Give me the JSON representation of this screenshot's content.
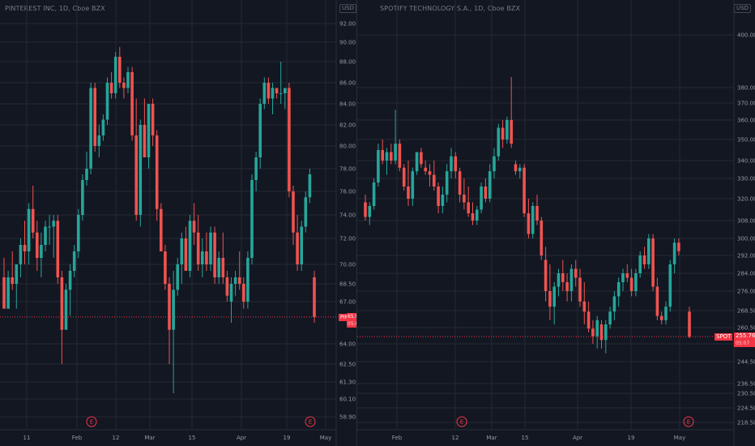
{
  "left": {
    "title": "PINTEREST INC, 1D, Cboe BZX",
    "currency": "USD",
    "symbol": "PINS",
    "price": "65.91",
    "countdown": "05:07",
    "earnings_label": "E",
    "colors": {
      "up": "#26a69a",
      "down": "#ef5350",
      "price_line": "#f23645"
    }
  },
  "right": {
    "title": "SPOTIFY TECHNOLOGY S.A., 1D, Cboe BZX",
    "currency": "USD",
    "symbol": "SPOT",
    "price": "255.76",
    "countdown": "05:07",
    "earnings_label": "E",
    "colors": {
      "up": "#26a69a",
      "down": "#ef5350",
      "price_line": "#f23645"
    }
  },
  "chart_data": [
    {
      "type": "candlestick",
      "title": "PINTEREST INC, 1D, Cboe BZX",
      "y_ticks": [
        "92.00",
        "90.00",
        "88.00",
        "86.00",
        "84.00",
        "82.00",
        "80.00",
        "78.00",
        "76.00",
        "74.00",
        "72.00",
        "70.00",
        "68.50",
        "67.00",
        "64.00",
        "62.50",
        "61.30",
        "60.10",
        "58.90"
      ],
      "y_tick_values": [
        92.0,
        90.0,
        88.0,
        86.0,
        84.0,
        82.0,
        80.0,
        78.0,
        76.0,
        74.0,
        72.0,
        70.0,
        68.5,
        67.0,
        64.0,
        62.5,
        61.3,
        60.1,
        58.9
      ],
      "x_ticks": [
        "11",
        "Feb",
        "12",
        "Mar",
        "15",
        "Apr",
        "19",
        "May"
      ],
      "last_price": 65.91,
      "candles": [
        [
          69.0,
          70.5,
          66.5,
          66.5
        ],
        [
          66.5,
          69.5,
          66.5,
          69.0
        ],
        [
          69.0,
          71.0,
          68.0,
          68.5
        ],
        [
          68.5,
          70.0,
          66.5,
          70.0
        ],
        [
          70.0,
          72.0,
          69.0,
          71.5
        ],
        [
          71.5,
          73.5,
          70.0,
          71.0
        ],
        [
          71.0,
          75.0,
          70.0,
          74.5
        ],
        [
          74.5,
          76.5,
          72.0,
          72.5
        ],
        [
          72.5,
          73.5,
          69.5,
          70.5
        ],
        [
          70.5,
          72.5,
          69.0,
          71.5
        ],
        [
          71.5,
          73.5,
          71.0,
          73.0
        ],
        [
          73.0,
          74.0,
          71.5,
          73.0
        ],
        [
          73.0,
          74.0,
          70.5,
          73.5
        ],
        [
          73.5,
          74.0,
          68.5,
          69.0
        ],
        [
          69.0,
          69.5,
          62.5,
          65.0
        ],
        [
          65.0,
          68.5,
          65.0,
          68.0
        ],
        [
          68.0,
          70.0,
          66.0,
          69.5
        ],
        [
          69.5,
          71.5,
          69.0,
          71.0
        ],
        [
          71.0,
          74.5,
          70.5,
          74.0
        ],
        [
          74.0,
          77.5,
          73.5,
          77.0
        ],
        [
          77.0,
          79.5,
          76.5,
          78.0
        ],
        [
          78.0,
          86.0,
          77.5,
          85.5
        ],
        [
          85.5,
          86.0,
          79.5,
          80.0
        ],
        [
          80.0,
          82.0,
          79.0,
          81.0
        ],
        [
          81.0,
          83.0,
          80.5,
          82.5
        ],
        [
          82.5,
          86.5,
          82.0,
          86.0
        ],
        [
          86.0,
          87.0,
          84.5,
          85.0
        ],
        [
          85.0,
          89.0,
          84.5,
          88.5
        ],
        [
          88.5,
          89.5,
          85.5,
          86.0
        ],
        [
          86.0,
          86.5,
          84.5,
          85.5
        ],
        [
          85.5,
          87.5,
          85.0,
          87.0
        ],
        [
          87.0,
          87.5,
          80.5,
          81.0
        ],
        [
          81.0,
          84.5,
          73.5,
          74.0
        ],
        [
          74.0,
          82.5,
          73.0,
          82.0
        ],
        [
          82.0,
          84.5,
          79.0,
          79.0
        ],
        [
          79.0,
          84.0,
          78.0,
          84.0
        ],
        [
          84.0,
          84.5,
          80.0,
          81.0
        ],
        [
          81.0,
          81.5,
          73.5,
          74.5
        ],
        [
          74.5,
          75.0,
          71.0,
          71.0
        ],
        [
          71.0,
          71.5,
          68.0,
          68.5
        ],
        [
          68.5,
          69.0,
          62.5,
          65.0
        ],
        [
          65.0,
          69.5,
          60.5,
          68.0
        ],
        [
          68.0,
          70.5,
          67.5,
          70.0
        ],
        [
          70.0,
          72.5,
          68.5,
          72.0
        ],
        [
          72.0,
          73.0,
          69.5,
          69.5
        ],
        [
          69.5,
          74.0,
          69.0,
          73.5
        ],
        [
          73.5,
          75.0,
          71.5,
          72.5
        ],
        [
          72.5,
          74.0,
          69.5,
          70.0
        ],
        [
          70.0,
          72.0,
          69.0,
          71.0
        ],
        [
          71.0,
          72.5,
          69.5,
          70.0
        ],
        [
          70.0,
          73.0,
          69.5,
          72.5
        ],
        [
          72.5,
          73.0,
          68.5,
          69.0
        ],
        [
          69.0,
          71.0,
          68.5,
          70.5
        ],
        [
          70.5,
          72.5,
          68.5,
          69.0
        ],
        [
          69.0,
          69.5,
          67.0,
          67.5
        ],
        [
          67.0,
          69.0,
          65.5,
          68.5
        ],
        [
          68.5,
          69.5,
          67.5,
          69.0
        ],
        [
          69.0,
          71.0,
          68.0,
          68.5
        ],
        [
          68.5,
          69.0,
          66.5,
          67.0
        ],
        [
          67.0,
          71.0,
          66.5,
          70.5
        ],
        [
          70.5,
          77.5,
          70.0,
          77.0
        ],
        [
          77.0,
          79.5,
          76.0,
          79.0
        ],
        [
          79.0,
          84.5,
          78.0,
          84.0
        ],
        [
          84.0,
          86.5,
          83.5,
          86.0
        ],
        [
          86.0,
          86.5,
          84.0,
          84.5
        ],
        [
          84.5,
          86.0,
          83.0,
          85.5
        ],
        [
          85.5,
          85.5,
          84.5,
          85.0
        ],
        [
          85.0,
          88.0,
          84.0,
          85.0
        ],
        [
          85.0,
          85.5,
          83.5,
          85.5
        ],
        [
          85.5,
          86.0,
          75.5,
          76.0
        ],
        [
          76.0,
          76.5,
          71.5,
          72.5
        ],
        [
          72.5,
          74.0,
          69.5,
          70.0
        ],
        [
          70.0,
          73.5,
          69.5,
          73.0
        ],
        [
          73.0,
          76.0,
          72.5,
          75.5
        ],
        [
          75.5,
          78.0,
          75.0,
          77.5
        ],
        [
          69.0,
          69.5,
          65.5,
          65.91
        ]
      ],
      "earnings_marks": [
        "Feb",
        "Apr 19 – May"
      ]
    },
    {
      "type": "candlestick",
      "title": "SPOTIFY TECHNOLOGY S.A., 1D, Cboe BZX",
      "y_ticks": [
        "400.00",
        "380.00",
        "370.00",
        "360.00",
        "350.00",
        "340.00",
        "330.00",
        "320.00",
        "308.00",
        "300.00",
        "292.00",
        "284.00",
        "276.00",
        "268.50",
        "260.50",
        "252.00",
        "244.50",
        "236.50",
        "230.50",
        "224.50",
        "218.50"
      ],
      "y_tick_values": [
        400,
        380,
        370,
        360,
        350,
        340,
        330,
        320,
        308,
        300,
        292,
        284,
        276,
        268.5,
        260.5,
        252,
        244.5,
        236.5,
        230.5,
        224.5,
        218.5
      ],
      "x_ticks": [
        "Feb",
        "12",
        "Mar",
        "15",
        "Apr",
        "19",
        "May"
      ],
      "last_price": 255.76,
      "candles": [
        [
          318,
          322,
          308,
          310
        ],
        [
          310,
          318,
          306,
          316
        ],
        [
          316,
          330,
          314,
          328
        ],
        [
          328,
          348,
          326,
          345
        ],
        [
          345,
          350,
          338,
          340
        ],
        [
          340,
          346,
          332,
          344
        ],
        [
          344,
          348,
          338,
          340
        ],
        [
          340,
          366,
          338,
          348
        ],
        [
          348,
          350,
          334,
          336
        ],
        [
          336,
          338,
          324,
          326
        ],
        [
          326,
          340,
          316,
          320
        ],
        [
          320,
          336,
          316,
          334
        ],
        [
          334,
          344,
          332,
          344
        ],
        [
          344,
          346,
          336,
          338
        ],
        [
          336,
          340,
          332,
          334
        ],
        [
          334,
          338,
          326,
          332
        ],
        [
          332,
          340,
          324,
          326
        ],
        [
          326,
          328,
          312,
          316
        ],
        [
          316,
          326,
          312,
          322
        ],
        [
          322,
          338,
          318,
          334
        ],
        [
          334,
          346,
          330,
          342
        ],
        [
          342,
          344,
          330,
          334
        ],
        [
          334,
          336,
          318,
          322
        ],
        [
          322,
          330,
          314,
          318
        ],
        [
          318,
          326,
          310,
          312
        ],
        [
          312,
          318,
          306,
          308
        ],
        [
          308,
          316,
          306,
          314
        ],
        [
          314,
          328,
          312,
          326
        ],
        [
          326,
          330,
          318,
          320
        ],
        [
          320,
          338,
          318,
          334
        ],
        [
          334,
          346,
          330,
          342
        ],
        [
          342,
          358,
          340,
          356
        ],
        [
          356,
          360,
          346,
          350
        ],
        [
          350,
          362,
          348,
          360
        ],
        [
          360,
          384,
          346,
          348
        ],
        [
          338,
          340,
          332,
          334
        ],
        [
          334,
          338,
          330,
          336
        ],
        [
          336,
          338,
          310,
          312
        ],
        [
          312,
          320,
          300,
          302
        ],
        [
          302,
          318,
          300,
          316
        ],
        [
          316,
          322,
          306,
          308
        ],
        [
          308,
          310,
          290,
          292
        ],
        [
          290,
          296,
          272,
          276
        ],
        [
          276,
          288,
          264,
          270
        ],
        [
          270,
          280,
          262,
          278
        ],
        [
          278,
          286,
          274,
          284
        ],
        [
          284,
          290,
          276,
          280
        ],
        [
          280,
          284,
          272,
          276
        ],
        [
          276,
          288,
          272,
          286
        ],
        [
          286,
          290,
          278,
          282
        ],
        [
          282,
          286,
          270,
          272
        ],
        [
          272,
          280,
          262,
          268
        ],
        [
          268,
          272,
          258,
          260
        ],
        [
          260,
          264,
          252,
          256
        ],
        [
          256,
          266,
          250,
          264
        ],
        [
          262,
          264,
          250,
          254
        ],
        [
          254,
          264,
          248,
          262
        ],
        [
          262,
          270,
          260,
          268
        ],
        [
          268,
          276,
          264,
          274
        ],
        [
          274,
          282,
          270,
          280
        ],
        [
          280,
          286,
          276,
          284
        ],
        [
          284,
          288,
          280,
          282
        ],
        [
          282,
          286,
          274,
          276
        ],
        [
          276,
          286,
          274,
          284
        ],
        [
          284,
          294,
          282,
          292
        ],
        [
          292,
          296,
          286,
          288
        ],
        [
          288,
          302,
          286,
          300
        ],
        [
          300,
          302,
          276,
          278
        ],
        [
          278,
          282,
          264,
          266
        ],
        [
          266,
          268,
          262,
          264
        ],
        [
          264,
          272,
          262,
          270
        ],
        [
          270,
          290,
          268,
          288
        ],
        [
          288,
          300,
          284,
          298
        ],
        [
          298,
          300,
          292,
          294
        ],
        [
          268,
          270,
          255,
          255.76
        ]
      ],
      "earnings_marks": [
        "Feb",
        "Apr 19 – May"
      ]
    }
  ]
}
